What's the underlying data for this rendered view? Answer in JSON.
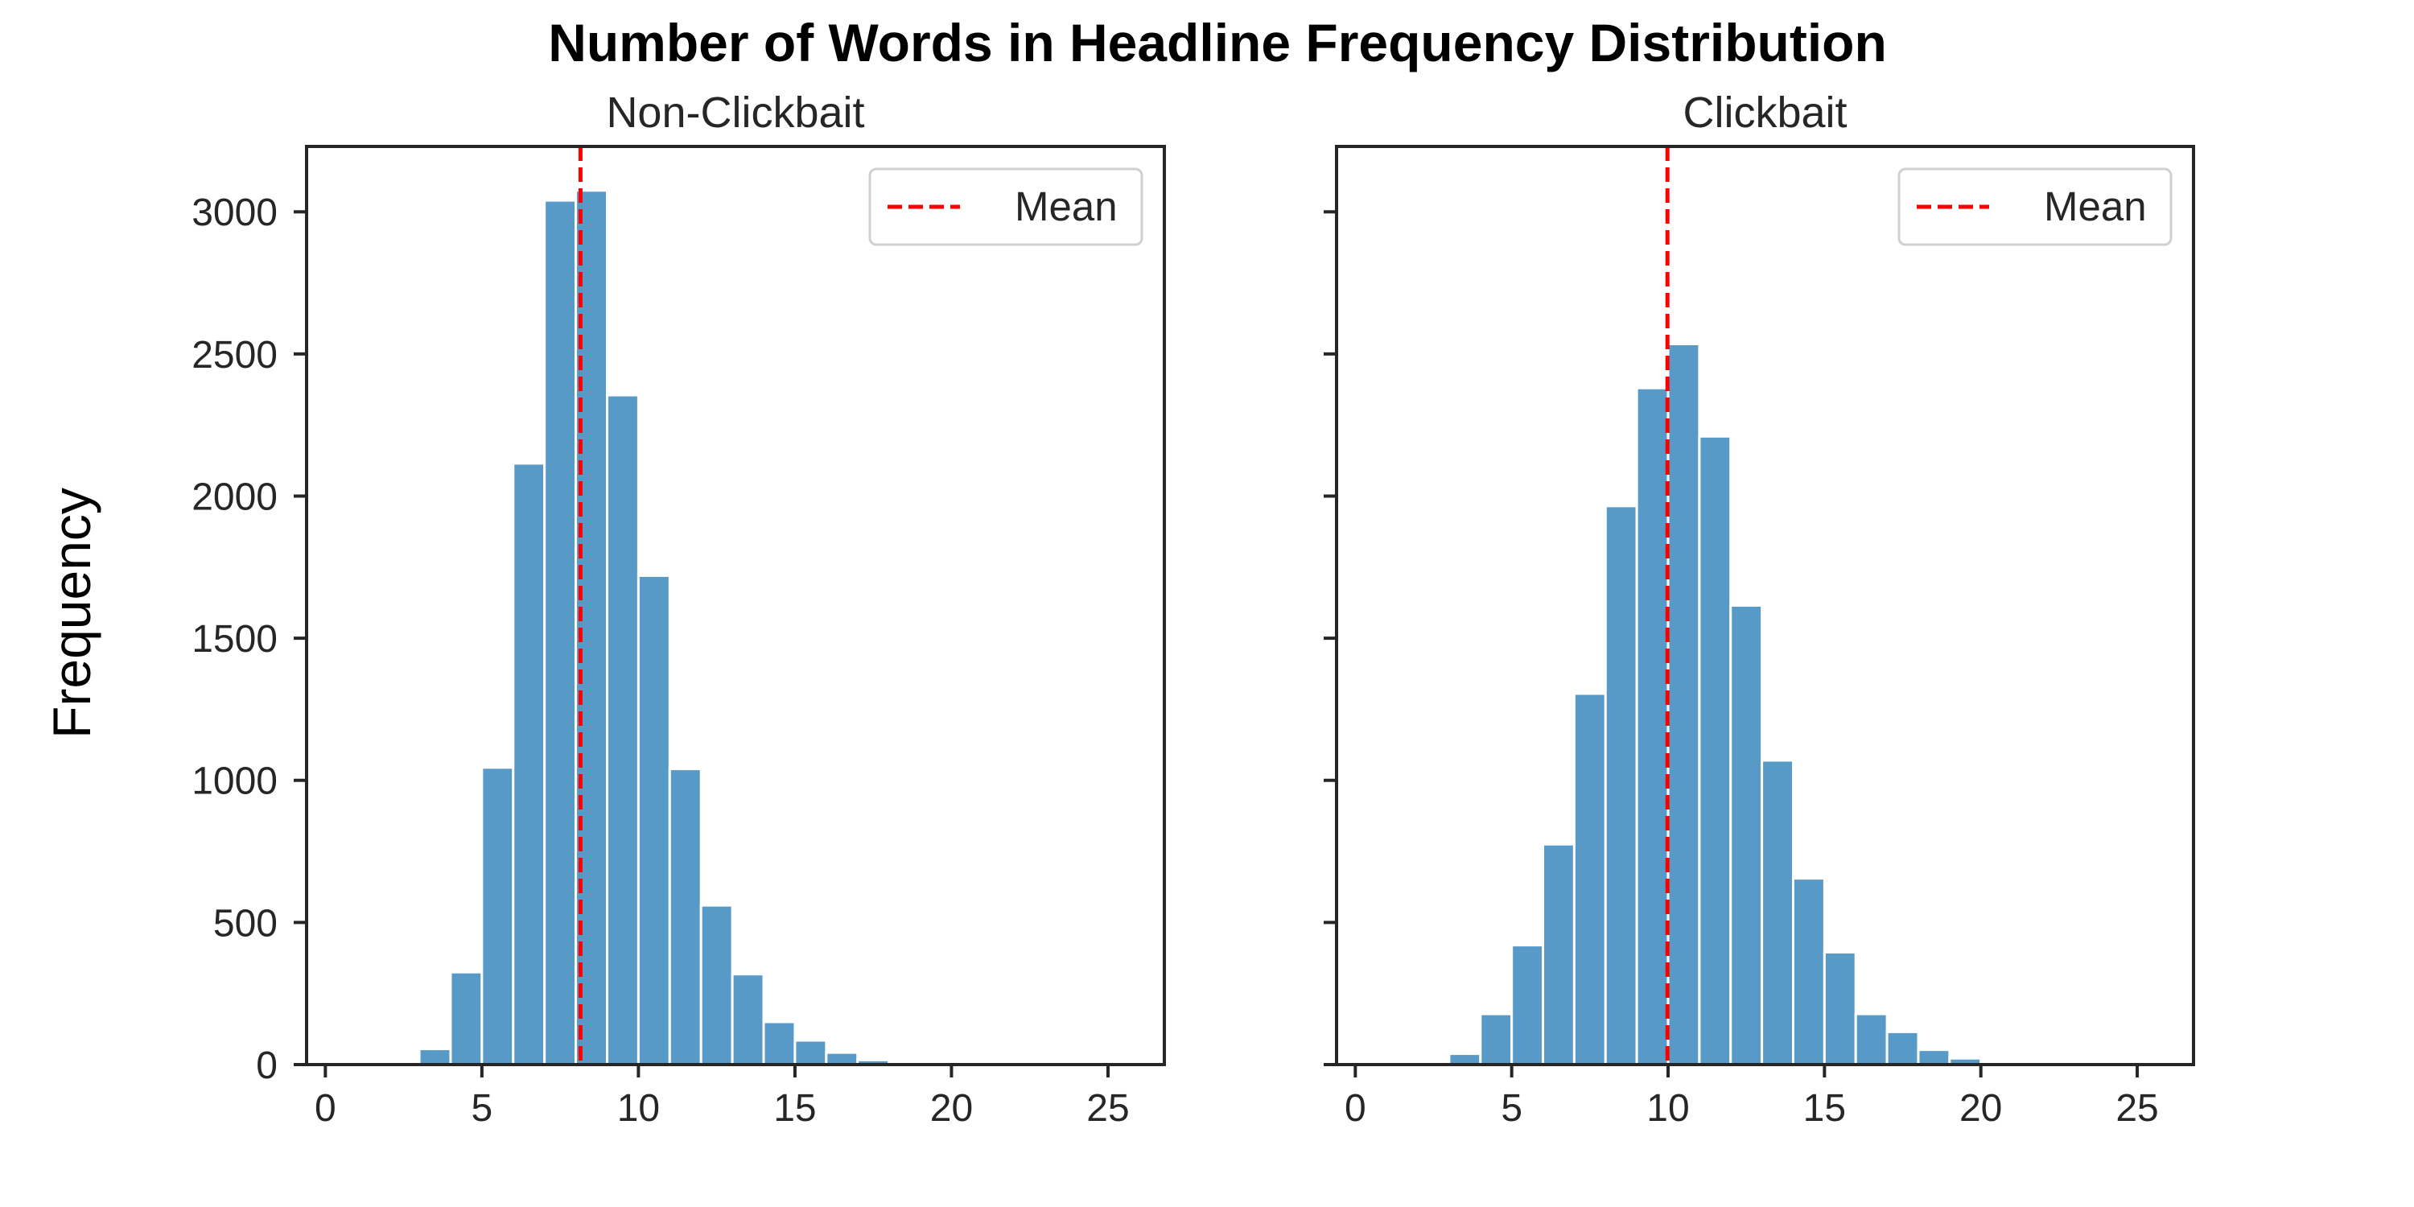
{
  "chart_data": {
    "type": "bar",
    "title": "Number of Words in Headline Frequency Distribution",
    "ylabel": "Frequency",
    "xlim": [
      -0.6,
      26.8
    ],
    "ylim": [
      0,
      3230
    ],
    "xticks": [
      0,
      5,
      10,
      15,
      20,
      25
    ],
    "yticks": [
      0,
      500,
      1000,
      1500,
      2000,
      2500,
      3000
    ],
    "shared_y": true,
    "bar_color": "#5799c7",
    "mean_line_color": "#ff0000",
    "legend_placement": "upper-right",
    "grid": false,
    "bin_width": 1,
    "subplots": [
      {
        "title": "Non-Clickbait",
        "legend": [
          "Mean"
        ],
        "mean": 8.15,
        "bins": [
          {
            "x": 3,
            "value": 55
          },
          {
            "x": 4,
            "value": 325
          },
          {
            "x": 5,
            "value": 1045
          },
          {
            "x": 6,
            "value": 2115
          },
          {
            "x": 7,
            "value": 3040
          },
          {
            "x": 8,
            "value": 3075
          },
          {
            "x": 9,
            "value": 2355
          },
          {
            "x": 10,
            "value": 1720
          },
          {
            "x": 11,
            "value": 1040
          },
          {
            "x": 12,
            "value": 560
          },
          {
            "x": 13,
            "value": 318
          },
          {
            "x": 14,
            "value": 150
          },
          {
            "x": 15,
            "value": 85
          },
          {
            "x": 16,
            "value": 42
          },
          {
            "x": 17,
            "value": 16
          },
          {
            "x": 18,
            "value": 5
          },
          {
            "x": 19,
            "value": 3
          },
          {
            "x": 20,
            "value": 2
          },
          {
            "x": 21,
            "value": 1
          },
          {
            "x": 22,
            "value": 1
          },
          {
            "x": 23,
            "value": 1
          },
          {
            "x": 24,
            "value": 1
          }
        ]
      },
      {
        "title": "Clickbait",
        "legend": [
          "Mean"
        ],
        "mean": 9.98,
        "bins": [
          {
            "x": 2,
            "value": 8
          },
          {
            "x": 3,
            "value": 38
          },
          {
            "x": 4,
            "value": 178
          },
          {
            "x": 5,
            "value": 420
          },
          {
            "x": 6,
            "value": 775
          },
          {
            "x": 7,
            "value": 1305
          },
          {
            "x": 8,
            "value": 1965
          },
          {
            "x": 9,
            "value": 2380
          },
          {
            "x": 10,
            "value": 2535
          },
          {
            "x": 11,
            "value": 2210
          },
          {
            "x": 12,
            "value": 1615
          },
          {
            "x": 13,
            "value": 1070
          },
          {
            "x": 14,
            "value": 655
          },
          {
            "x": 15,
            "value": 395
          },
          {
            "x": 16,
            "value": 178
          },
          {
            "x": 17,
            "value": 115
          },
          {
            "x": 18,
            "value": 52
          },
          {
            "x": 19,
            "value": 22
          },
          {
            "x": 20,
            "value": 4
          },
          {
            "x": 21,
            "value": 2
          },
          {
            "x": 22,
            "value": 1
          }
        ]
      }
    ]
  }
}
